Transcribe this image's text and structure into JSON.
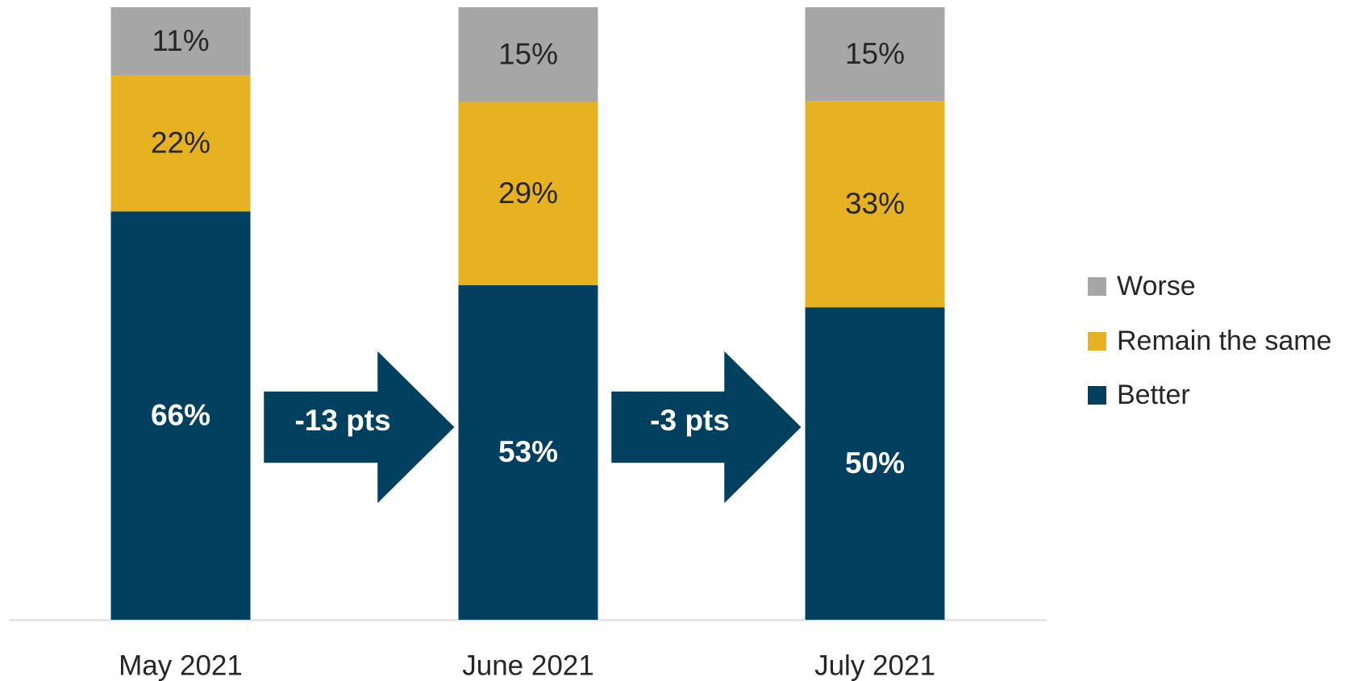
{
  "chart_data": {
    "type": "bar",
    "stacked": "percent",
    "categories": [
      "May 2021",
      "June 2021",
      "July 2021"
    ],
    "series": [
      {
        "name": "Better",
        "color": "#01405f",
        "values": [
          66,
          53,
          50
        ],
        "value_labels": [
          "66%",
          "53%",
          "50%"
        ]
      },
      {
        "name": "Remain the same",
        "color": "#e6b221",
        "values": [
          22,
          29,
          33
        ],
        "value_labels": [
          "22%",
          "29%",
          "33%"
        ]
      },
      {
        "name": "Worse",
        "color": "#a6a6a6",
        "values": [
          11,
          15,
          15
        ],
        "value_labels": [
          "11%",
          "15%",
          "15%"
        ]
      }
    ],
    "annotations": [
      {
        "text": "-13 pts"
      },
      {
        "text": "-3 pts"
      }
    ],
    "legend": "right"
  }
}
